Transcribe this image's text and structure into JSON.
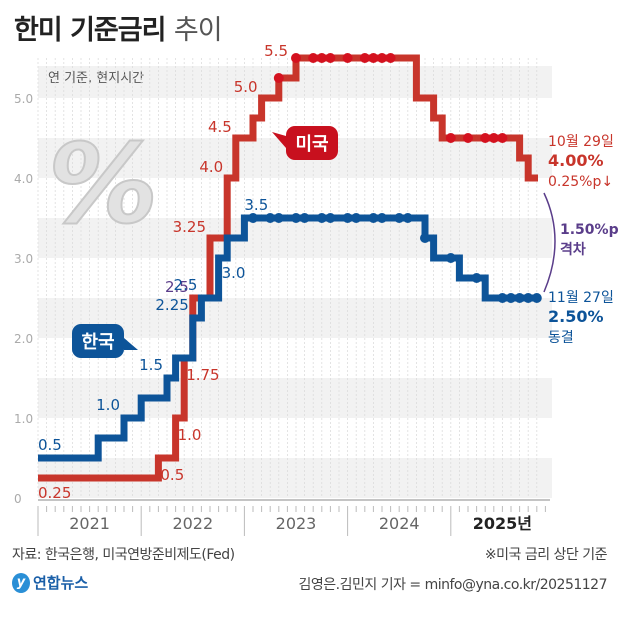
{
  "title": {
    "main": "한미 기준금리",
    "sub": "추이"
  },
  "footer": {
    "source": "자료: 한국은행, 미국연방준비제도(Fed)",
    "note": "※미국 금리 상단 기준",
    "logo": "연합뉴스",
    "logo_mark": "y",
    "credit": "김영은.김민지 기자 = minfo@yna.co.kr/20251127"
  },
  "colors": {
    "us": "#c8352b",
    "korea": "#0d5499",
    "gap": "#5a3d8a",
    "axis": "#aaaaaa",
    "band": "#f2f2f2"
  },
  "chart_data": {
    "type": "line",
    "step": true,
    "title": "한미 기준금리 추이",
    "subtitle": "연 기준, 현지시간",
    "ylabel": "%",
    "ylim": [
      0,
      5.7
    ],
    "yticks": [
      0,
      1.0,
      2.0,
      3.0,
      4.0,
      5.0
    ],
    "ytick_labels": [
      "0",
      "1.0",
      "2.0",
      "3.0",
      "4.0",
      "5.0"
    ],
    "xlim": [
      "2021-01",
      "2025-12"
    ],
    "x_categories": [
      "2021",
      "2022",
      "2023",
      "2024",
      "2025년"
    ],
    "grid": "horizontal bands + monthly dotted verticals",
    "series": [
      {
        "name": "미국",
        "label": "미국",
        "points": [
          [
            "2021-01",
            0.25
          ],
          [
            "2022-03",
            0.5
          ],
          [
            "2022-05",
            1.0
          ],
          [
            "2022-06",
            1.75
          ],
          [
            "2022-07",
            2.5
          ],
          [
            "2022-09",
            3.25
          ],
          [
            "2022-11",
            4.0
          ],
          [
            "2022-12",
            4.5
          ],
          [
            "2023-02",
            4.75
          ],
          [
            "2023-03",
            5.0
          ],
          [
            "2023-05",
            5.25
          ],
          [
            "2023-07",
            5.5
          ],
          [
            "2024-09",
            5.0
          ],
          [
            "2024-11",
            4.75
          ],
          [
            "2024-12",
            4.5
          ],
          [
            "2025-09",
            4.25
          ],
          [
            "2025-10",
            4.0
          ]
        ],
        "value_labels": [
          {
            "at": "2021-01",
            "text": "0.25"
          },
          {
            "at": "2022-03",
            "text": "0.5"
          },
          {
            "at": "2022-05",
            "text": "1.0"
          },
          {
            "at": "2022-06",
            "text": "1.75"
          },
          {
            "at": "2022-07",
            "text": "2.5"
          },
          {
            "at": "2022-09",
            "text": "3.25"
          },
          {
            "at": "2022-11",
            "text": "4.0"
          },
          {
            "at": "2022-12",
            "text": "4.5"
          },
          {
            "at": "2023-03",
            "text": "5.0"
          },
          {
            "at": "2023-07",
            "text": "5.5"
          }
        ],
        "hold_dots": [
          "2023-05",
          "2023-07",
          "2023-09",
          "2023-10",
          "2023-11",
          "2024-01",
          "2024-03",
          "2024-04",
          "2024-05",
          "2024-06",
          "2025-01",
          "2025-03",
          "2025-05",
          "2025-06",
          "2025-07"
        ]
      },
      {
        "name": "한국",
        "label": "한국",
        "points": [
          [
            "2021-01",
            0.5
          ],
          [
            "2021-08",
            0.75
          ],
          [
            "2021-11",
            1.0
          ],
          [
            "2022-01",
            1.25
          ],
          [
            "2022-04",
            1.5
          ],
          [
            "2022-05",
            1.75
          ],
          [
            "2022-07",
            2.25
          ],
          [
            "2022-08",
            2.5
          ],
          [
            "2022-10",
            3.0
          ],
          [
            "2022-11",
            3.25
          ],
          [
            "2023-01",
            3.5
          ],
          [
            "2024-10",
            3.25
          ],
          [
            "2024-11",
            3.0
          ],
          [
            "2025-02",
            2.75
          ],
          [
            "2025-05",
            2.5
          ]
        ],
        "value_labels": [
          {
            "at": "2021-01",
            "text": "0.5"
          },
          {
            "at": "2021-11",
            "text": "1.0"
          },
          {
            "at": "2022-04",
            "text": "1.5"
          },
          {
            "at": "2022-07",
            "text": "2.25"
          },
          {
            "at": "2022-08",
            "text": "2.5"
          },
          {
            "at": "2022-10",
            "text": "3.0"
          },
          {
            "at": "2023-01",
            "text": "3.5"
          }
        ],
        "hold_dots": [
          "2023-02",
          "2023-04",
          "2023-05",
          "2023-07",
          "2023-08",
          "2023-10",
          "2023-11",
          "2024-01",
          "2024-02",
          "2024-04",
          "2024-05",
          "2024-07",
          "2024-08",
          "2024-10",
          "2025-01",
          "2025-04",
          "2025-07",
          "2025-08",
          "2025-09",
          "2025-10",
          "2025-11"
        ]
      }
    ],
    "annotations": {
      "us_latest": {
        "date": "10월 29일",
        "value": "4.00%",
        "change": "0.25%p↓"
      },
      "korea_latest": {
        "date": "11월 27일",
        "value": "2.50%",
        "change": "동결"
      },
      "gap": {
        "value": "1.50%p",
        "label": "격차"
      }
    }
  }
}
